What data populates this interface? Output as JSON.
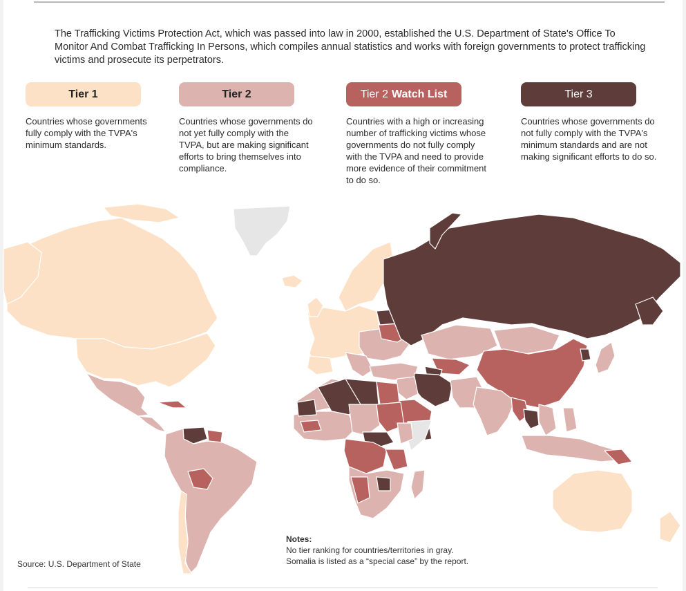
{
  "intro": "The Trafficking Victims Protection Act, which was passed into law in 2000, established the U.S. Department of State's Office To Monitor And Combat Trafficking In Persons, which compiles annual statistics and works with foreign governments to protect trafficking victims and prosecute its perpetrators.",
  "legend": [
    {
      "label": "Tier 1",
      "label_light": "",
      "description": "Countries whose governments fully comply with the TVPA's minimum standards.",
      "color": "#fde1c7"
    },
    {
      "label": "Tier 2",
      "label_light": "",
      "description": "Countries whose governments do not yet fully comply with the TVPA, but are making significant efforts to bring themselves into compliance.",
      "color": "#dcb3ae"
    },
    {
      "label": "Watch List",
      "label_light": "Tier 2",
      "description": "Countries with a high or increasing number of trafficking victims whose governments do not fully comply with the TVPA and need to provide more evidence of their commitment to do so.",
      "color": "#b86260"
    },
    {
      "label": "Tier 3",
      "label_light": "",
      "description": "Countries whose governments do not fully comply with the TVPA's minimum standards and are not making significant efforts to do so.",
      "color": "#5e3c3a"
    }
  ],
  "map": {
    "colors": {
      "tier1": "#fde1c7",
      "tier2": "#dcb3ae",
      "tier2_watch": "#b86260",
      "tier3": "#5e3c3a",
      "no_ranking": "#e6e6e6",
      "border": "#ffffff"
    }
  },
  "notes": {
    "title": "Notes:",
    "lines": [
      "No tier ranking for countries/territories in gray.",
      "Somalia is listed as a “special case” by the report."
    ]
  },
  "source": "Source: U.S. Department of State"
}
